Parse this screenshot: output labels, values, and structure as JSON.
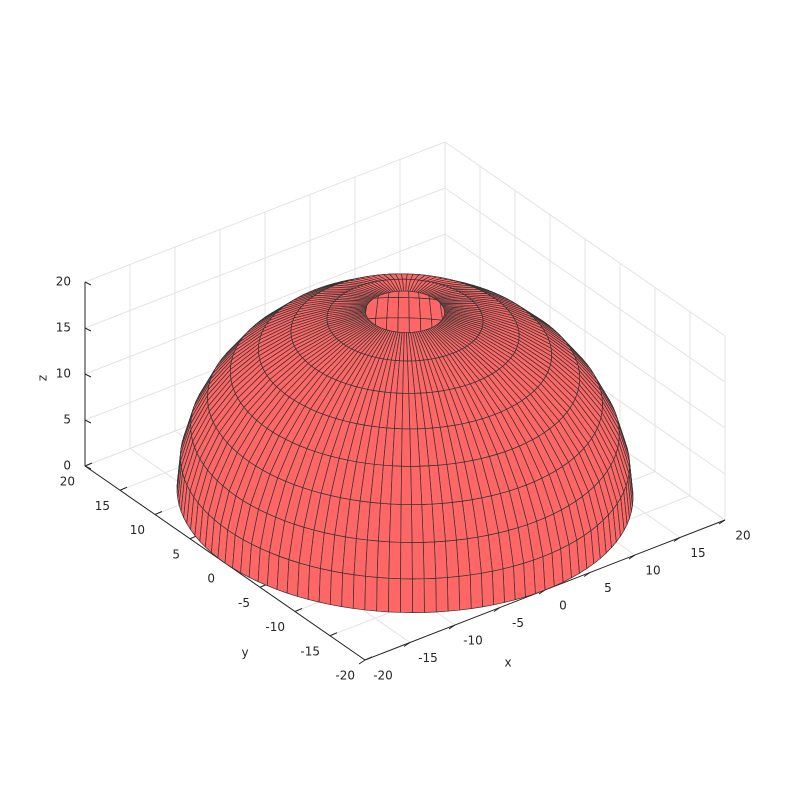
{
  "chart_data": {
    "type": "surface",
    "xlabel": "x",
    "ylabel": "y",
    "zlabel": "z",
    "xlim": [
      -20,
      20
    ],
    "ylim": [
      -20,
      20
    ],
    "zlim": [
      0,
      20
    ],
    "xticks": [
      -20,
      -15,
      -10,
      -5,
      0,
      5,
      10,
      15,
      20
    ],
    "yticks": [
      -20,
      -15,
      -10,
      -5,
      0,
      5,
      10,
      15,
      20
    ],
    "zticks": [
      0,
      5,
      10,
      15,
      20
    ],
    "grid": true,
    "color": "#ff6666",
    "edge_color": "#333333",
    "surface": {
      "radius": 20,
      "ring_elevations": [
        0,
        10,
        20,
        30,
        40,
        50,
        60,
        70,
        80
      ],
      "meridian_count": 120
    }
  }
}
